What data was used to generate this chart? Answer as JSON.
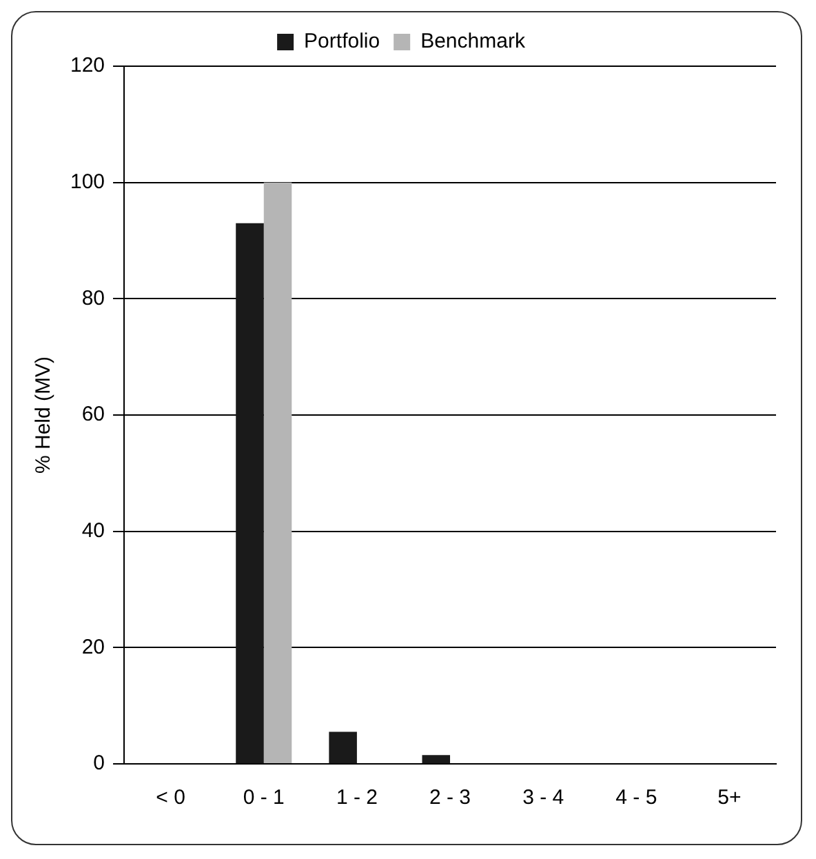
{
  "chart_data": {
    "type": "bar",
    "ylabel": "% Held (MV)",
    "categories": [
      "< 0",
      "0 - 1",
      "1 - 2",
      "2 - 3",
      "3 - 4",
      "4 - 5",
      "5+"
    ],
    "series": [
      {
        "name": "Portfolio",
        "color": "#1a1a1a",
        "values": [
          0,
          93,
          5.5,
          1.5,
          0,
          0,
          0
        ]
      },
      {
        "name": "Benchmark",
        "color": "#b5b5b5",
        "values": [
          0,
          100,
          0,
          0,
          0,
          0,
          0
        ]
      }
    ],
    "ylim": [
      0,
      120
    ],
    "yticks": [
      0,
      20,
      40,
      60,
      80,
      100,
      120
    ],
    "grid": "y",
    "legend": "top"
  }
}
